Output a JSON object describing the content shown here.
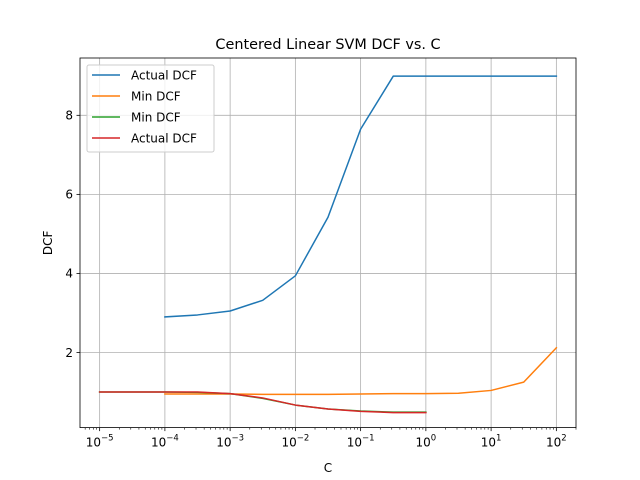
{
  "chart_data": {
    "type": "line",
    "title": "Centered Linear SVM DCF vs. C",
    "xlabel": "C",
    "ylabel": "DCF",
    "xscale": "log",
    "xlim": [
      5e-06,
      200
    ],
    "ylim": [
      0.1,
      9.45
    ],
    "grid": true,
    "legend_position": "top-left",
    "x_ticks": [
      {
        "value": 1e-05,
        "base": "10",
        "exp": "−5"
      },
      {
        "value": 0.0001,
        "base": "10",
        "exp": "−4"
      },
      {
        "value": 0.001,
        "base": "10",
        "exp": "−3"
      },
      {
        "value": 0.01,
        "base": "10",
        "exp": "−2"
      },
      {
        "value": 0.1,
        "base": "10",
        "exp": "−1"
      },
      {
        "value": 1,
        "base": "10",
        "exp": "0"
      },
      {
        "value": 10,
        "base": "10",
        "exp": "1"
      },
      {
        "value": 100,
        "base": "10",
        "exp": "2"
      }
    ],
    "y_ticks": [
      {
        "value": 2,
        "label": "2"
      },
      {
        "value": 4,
        "label": "4"
      },
      {
        "value": 6,
        "label": "6"
      },
      {
        "value": 8,
        "label": "8"
      }
    ],
    "series": [
      {
        "name": "Actual DCF",
        "color": "#1f77b4",
        "x": [
          0.0001,
          0.000316,
          0.001,
          0.00316,
          0.01,
          0.0316,
          0.1,
          0.316,
          1,
          3.16,
          10,
          31.6,
          100
        ],
        "y": [
          2.9,
          2.95,
          3.05,
          3.32,
          3.94,
          5.42,
          7.65,
          8.99,
          8.99,
          8.99,
          8.99,
          8.99,
          8.99
        ]
      },
      {
        "name": "Min DCF",
        "color": "#ff7f0e",
        "x": [
          0.0001,
          0.000316,
          0.001,
          0.00316,
          0.01,
          0.0316,
          0.1,
          0.316,
          1,
          3.16,
          10,
          31.6,
          100
        ],
        "y": [
          0.95,
          0.95,
          0.95,
          0.94,
          0.94,
          0.94,
          0.95,
          0.96,
          0.96,
          0.97,
          1.04,
          1.25,
          2.12
        ]
      },
      {
        "name": "Min DCF",
        "color": "#2ca02c",
        "x": [
          1e-05,
          3.16e-05,
          0.0001,
          0.000316,
          0.001,
          0.00316,
          0.01,
          0.0316,
          0.1,
          0.316,
          1
        ],
        "y": [
          1.0,
          1.0,
          1.0,
          0.99,
          0.96,
          0.84,
          0.67,
          0.57,
          0.52,
          0.49,
          0.49
        ]
      },
      {
        "name": "Actual DCF",
        "color": "#d62728",
        "x": [
          1e-05,
          3.16e-05,
          0.0001,
          0.000316,
          0.001,
          0.00316,
          0.01,
          0.0316,
          0.1,
          0.316,
          1
        ],
        "y": [
          1.0,
          1.0,
          1.0,
          1.0,
          0.96,
          0.85,
          0.67,
          0.57,
          0.51,
          0.48,
          0.48
        ]
      }
    ]
  }
}
